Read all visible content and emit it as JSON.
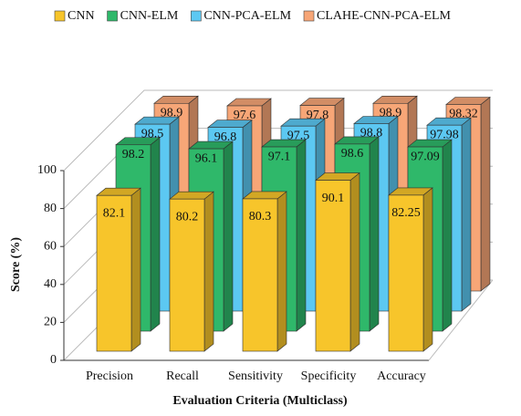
{
  "chart_data": {
    "type": "bar3d",
    "x_label": "Evaluation Criteria (Multiclass)",
    "y_label": "Score (%)",
    "categories": [
      "Precision",
      "Recall",
      "Sensitivity",
      "Specificity",
      "Accuracy"
    ],
    "series": [
      {
        "name": "CNN",
        "color": "#f7c52b",
        "values": [
          82.1,
          80.2,
          80.3,
          90.1,
          82.25
        ]
      },
      {
        "name": "CNN-ELM",
        "color": "#2fb86a",
        "values": [
          98.2,
          96.1,
          97.1,
          98.6,
          97.09
        ]
      },
      {
        "name": "CNN-PCA-ELM",
        "color": "#5cc8f2",
        "values": [
          98.5,
          96.8,
          97.5,
          98.8,
          97.98
        ]
      },
      {
        "name": "CLAHE-CNN-PCA-ELM",
        "color": "#f7a677",
        "values": [
          98.9,
          97.6,
          97.8,
          98.9,
          98.32
        ]
      }
    ],
    "ylim": [
      0,
      100
    ],
    "yticks": [
      0,
      20,
      40,
      60,
      80,
      100
    ],
    "grid": true,
    "legend": "top"
  }
}
